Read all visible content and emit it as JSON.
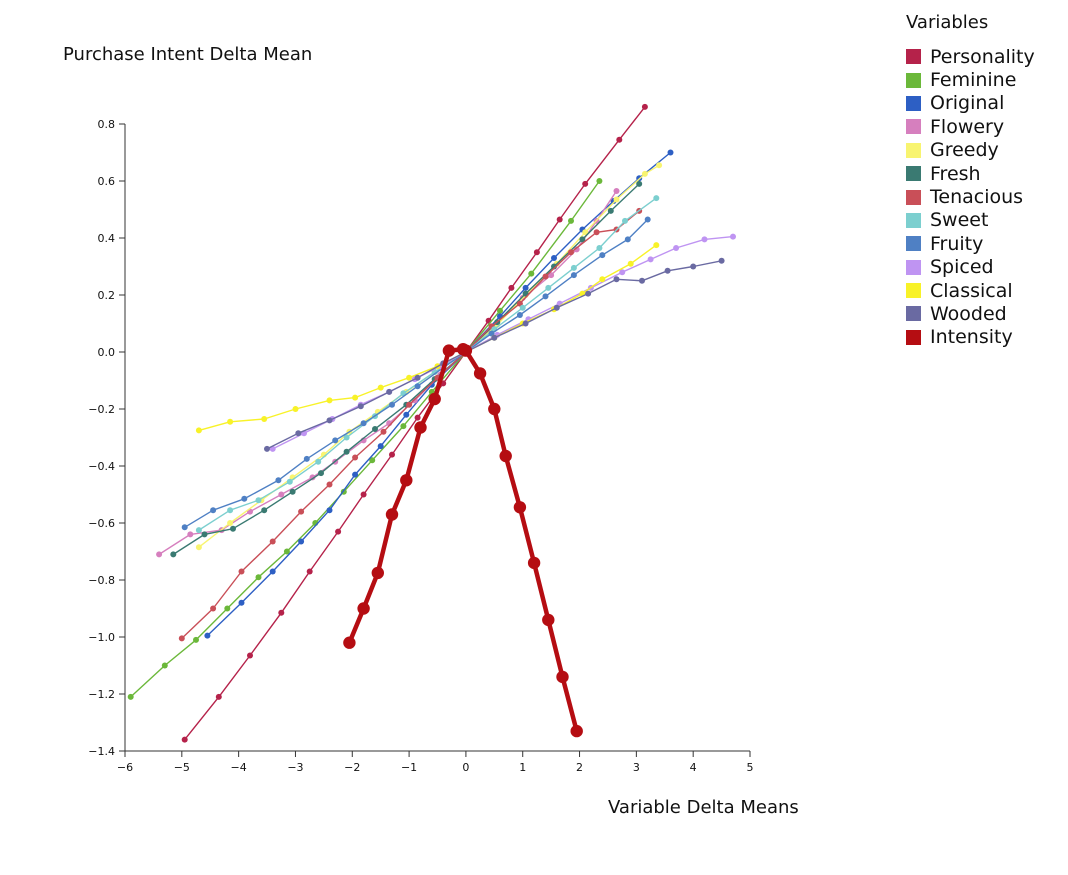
{
  "chart_data": {
    "type": "line",
    "xlabel": "Variable Delta Means",
    "ylabel": "Purchase Intent Delta Mean",
    "xlim": [
      -6,
      5
    ],
    "ylim": [
      -1.4,
      0.8
    ],
    "x_ticks": [
      "−6",
      "−5",
      "−4",
      "−3",
      "−2",
      "−1",
      "0",
      "1",
      "2",
      "3",
      "4",
      "5"
    ],
    "y_ticks": [
      "−1.4",
      "−1.2",
      "−1.0",
      "−0.8",
      "−0.6",
      "−0.4",
      "−0.2",
      "0.0",
      "0.2",
      "0.4",
      "0.6",
      "0.8"
    ],
    "legend_title": "Variables",
    "legend_position": "top-right",
    "grid": false,
    "series": [
      {
        "name": "Personality",
        "color": "#b5224a",
        "points": [
          [
            -4.95,
            -1.36
          ],
          [
            -4.35,
            -1.21
          ],
          [
            -3.8,
            -1.065
          ],
          [
            -3.25,
            -0.915
          ],
          [
            -2.75,
            -0.77
          ],
          [
            -2.25,
            -0.63
          ],
          [
            -1.8,
            -0.5
          ],
          [
            -1.3,
            -0.36
          ],
          [
            -0.85,
            -0.23
          ],
          [
            -0.4,
            -0.11
          ],
          [
            0,
            0
          ],
          [
            0.4,
            0.11
          ],
          [
            0.8,
            0.225
          ],
          [
            1.25,
            0.35
          ],
          [
            1.65,
            0.465
          ],
          [
            2.1,
            0.59
          ],
          [
            2.7,
            0.745
          ],
          [
            3.15,
            0.86
          ]
        ]
      },
      {
        "name": "Feminine",
        "color": "#6bb83a",
        "points": [
          [
            -5.9,
            -1.21
          ],
          [
            -5.3,
            -1.1
          ],
          [
            -4.75,
            -1.01
          ],
          [
            -4.2,
            -0.9
          ],
          [
            -3.65,
            -0.79
          ],
          [
            -3.15,
            -0.7
          ],
          [
            -2.65,
            -0.6
          ],
          [
            -2.15,
            -0.49
          ],
          [
            -1.65,
            -0.38
          ],
          [
            -1.1,
            -0.26
          ],
          [
            -0.6,
            -0.14
          ],
          [
            0,
            0
          ],
          [
            0.6,
            0.145
          ],
          [
            1.15,
            0.275
          ],
          [
            1.85,
            0.46
          ],
          [
            2.35,
            0.6
          ]
        ]
      },
      {
        "name": "Original",
        "color": "#2d5fc4",
        "points": [
          [
            -4.55,
            -0.995
          ],
          [
            -3.95,
            -0.88
          ],
          [
            -3.4,
            -0.77
          ],
          [
            -2.9,
            -0.665
          ],
          [
            -2.4,
            -0.555
          ],
          [
            -1.95,
            -0.43
          ],
          [
            -1.5,
            -0.33
          ],
          [
            -1.05,
            -0.22
          ],
          [
            -0.6,
            -0.115
          ],
          [
            0,
            0
          ],
          [
            0.6,
            0.125
          ],
          [
            1.05,
            0.225
          ],
          [
            1.55,
            0.33
          ],
          [
            2.05,
            0.43
          ],
          [
            2.6,
            0.53
          ],
          [
            3.05,
            0.61
          ],
          [
            3.6,
            0.7
          ]
        ]
      },
      {
        "name": "Flowery",
        "color": "#d67fbe",
        "points": [
          [
            -5.4,
            -0.71
          ],
          [
            -4.85,
            -0.64
          ],
          [
            -4.3,
            -0.625
          ],
          [
            -3.8,
            -0.56
          ],
          [
            -3.25,
            -0.5
          ],
          [
            -2.7,
            -0.44
          ],
          [
            -2.3,
            -0.385
          ],
          [
            -1.8,
            -0.31
          ],
          [
            -1.35,
            -0.25
          ],
          [
            -0.9,
            -0.17
          ],
          [
            -0.45,
            -0.08
          ],
          [
            0,
            0
          ],
          [
            0.55,
            0.1
          ],
          [
            1,
            0.19
          ],
          [
            1.5,
            0.27
          ],
          [
            1.95,
            0.36
          ],
          [
            2.3,
            0.46
          ],
          [
            2.65,
            0.565
          ]
        ]
      },
      {
        "name": "Greedy",
        "color": "#f8f470",
        "points": [
          [
            -4.7,
            -0.685
          ],
          [
            -4.15,
            -0.6
          ],
          [
            -3.6,
            -0.52
          ],
          [
            -3.05,
            -0.44
          ],
          [
            -2.5,
            -0.36
          ],
          [
            -2.05,
            -0.28
          ],
          [
            -1.55,
            -0.21
          ],
          [
            -1.05,
            -0.14
          ],
          [
            -0.55,
            -0.07
          ],
          [
            0,
            0
          ],
          [
            0.55,
            0.095
          ],
          [
            1.05,
            0.2
          ],
          [
            1.6,
            0.31
          ],
          [
            2.1,
            0.42
          ],
          [
            2.65,
            0.535
          ],
          [
            3.15,
            0.625
          ],
          [
            3.4,
            0.655
          ]
        ]
      },
      {
        "name": "Fresh",
        "color": "#3a7a72",
        "points": [
          [
            -5.15,
            -0.71
          ],
          [
            -4.6,
            -0.64
          ],
          [
            -4.1,
            -0.62
          ],
          [
            -3.55,
            -0.555
          ],
          [
            -3.05,
            -0.49
          ],
          [
            -2.55,
            -0.425
          ],
          [
            -2.1,
            -0.35
          ],
          [
            -1.6,
            -0.27
          ],
          [
            -1.05,
            -0.185
          ],
          [
            -0.55,
            -0.095
          ],
          [
            0,
            0
          ],
          [
            0.55,
            0.105
          ],
          [
            1.05,
            0.205
          ],
          [
            1.55,
            0.3
          ],
          [
            2.05,
            0.395
          ],
          [
            2.55,
            0.495
          ],
          [
            3.05,
            0.59
          ]
        ]
      },
      {
        "name": "Tenacious",
        "color": "#c94f58",
        "points": [
          [
            -5,
            -1.005
          ],
          [
            -4.45,
            -0.9
          ],
          [
            -3.95,
            -0.77
          ],
          [
            -3.4,
            -0.665
          ],
          [
            -2.9,
            -0.56
          ],
          [
            -2.4,
            -0.465
          ],
          [
            -1.95,
            -0.37
          ],
          [
            -1.45,
            -0.28
          ],
          [
            -1,
            -0.185
          ],
          [
            -0.5,
            -0.09
          ],
          [
            0,
            0
          ],
          [
            0.45,
            0.09
          ],
          [
            0.95,
            0.17
          ],
          [
            1.4,
            0.265
          ],
          [
            1.85,
            0.35
          ],
          [
            2.3,
            0.42
          ],
          [
            2.65,
            0.43
          ],
          [
            3.05,
            0.495
          ]
        ]
      },
      {
        "name": "Sweet",
        "color": "#7ccfcf",
        "points": [
          [
            -4.7,
            -0.625
          ],
          [
            -4.15,
            -0.555
          ],
          [
            -3.65,
            -0.52
          ],
          [
            -3.1,
            -0.455
          ],
          [
            -2.6,
            -0.385
          ],
          [
            -2.1,
            -0.3
          ],
          [
            -1.6,
            -0.225
          ],
          [
            -1.1,
            -0.145
          ],
          [
            -0.55,
            -0.07
          ],
          [
            0,
            0
          ],
          [
            0.5,
            0.08
          ],
          [
            1,
            0.155
          ],
          [
            1.45,
            0.225
          ],
          [
            1.9,
            0.295
          ],
          [
            2.35,
            0.365
          ],
          [
            2.8,
            0.46
          ],
          [
            3.35,
            0.54
          ]
        ]
      },
      {
        "name": "Fruity",
        "color": "#4f80c4",
        "points": [
          [
            -4.95,
            -0.615
          ],
          [
            -4.45,
            -0.555
          ],
          [
            -3.9,
            -0.515
          ],
          [
            -3.3,
            -0.45
          ],
          [
            -2.8,
            -0.375
          ],
          [
            -2.3,
            -0.31
          ],
          [
            -1.8,
            -0.25
          ],
          [
            -1.3,
            -0.185
          ],
          [
            -0.85,
            -0.12
          ],
          [
            -0.4,
            -0.055
          ],
          [
            0,
            0
          ],
          [
            0.45,
            0.065
          ],
          [
            0.95,
            0.13
          ],
          [
            1.4,
            0.195
          ],
          [
            1.9,
            0.27
          ],
          [
            2.4,
            0.34
          ],
          [
            2.85,
            0.395
          ],
          [
            3.2,
            0.465
          ]
        ]
      },
      {
        "name": "Spiced",
        "color": "#bf94f2",
        "points": [
          [
            -3.4,
            -0.34
          ],
          [
            -2.85,
            -0.285
          ],
          [
            -2.35,
            -0.235
          ],
          [
            -1.85,
            -0.185
          ],
          [
            -1.35,
            -0.14
          ],
          [
            -0.9,
            -0.095
          ],
          [
            -0.45,
            -0.05
          ],
          [
            0,
            0
          ],
          [
            0.55,
            0.06
          ],
          [
            1.1,
            0.115
          ],
          [
            1.65,
            0.17
          ],
          [
            2.2,
            0.225
          ],
          [
            2.75,
            0.28
          ],
          [
            3.25,
            0.325
          ],
          [
            3.7,
            0.365
          ],
          [
            4.2,
            0.395
          ],
          [
            4.7,
            0.405
          ]
        ]
      },
      {
        "name": "Classical",
        "color": "#f8f228",
        "points": [
          [
            -4.7,
            -0.275
          ],
          [
            -4.15,
            -0.245
          ],
          [
            -3.55,
            -0.235
          ],
          [
            -3,
            -0.2
          ],
          [
            -2.4,
            -0.17
          ],
          [
            -1.95,
            -0.16
          ],
          [
            -1.5,
            -0.125
          ],
          [
            -1,
            -0.09
          ],
          [
            -0.5,
            -0.05
          ],
          [
            0,
            0
          ],
          [
            0.5,
            0.05
          ],
          [
            1,
            0.1
          ],
          [
            1.55,
            0.15
          ],
          [
            2.05,
            0.205
          ],
          [
            2.4,
            0.255
          ],
          [
            2.9,
            0.31
          ],
          [
            3.35,
            0.375
          ]
        ]
      },
      {
        "name": "Wooded",
        "color": "#6a6aa2",
        "points": [
          [
            -3.5,
            -0.34
          ],
          [
            -2.95,
            -0.285
          ],
          [
            -2.4,
            -0.24
          ],
          [
            -1.85,
            -0.19
          ],
          [
            -1.35,
            -0.14
          ],
          [
            -0.85,
            -0.09
          ],
          [
            -0.4,
            -0.04
          ],
          [
            0,
            0
          ],
          [
            0.5,
            0.05
          ],
          [
            1.05,
            0.1
          ],
          [
            1.6,
            0.155
          ],
          [
            2.15,
            0.205
          ],
          [
            2.65,
            0.255
          ],
          [
            3.1,
            0.25
          ],
          [
            3.55,
            0.285
          ],
          [
            4,
            0.3
          ],
          [
            4.5,
            0.32
          ]
        ]
      },
      {
        "name": "Intensity",
        "color": "#b50d12",
        "highlighted": true,
        "points": [
          [
            -2.05,
            -1.02
          ],
          [
            -1.8,
            -0.9
          ],
          [
            -1.55,
            -0.775
          ],
          [
            -1.3,
            -0.57
          ],
          [
            -1.05,
            -0.45
          ],
          [
            -0.8,
            -0.265
          ],
          [
            -0.55,
            -0.165
          ],
          [
            -0.3,
            0.005
          ],
          [
            -0.05,
            0.01
          ],
          [
            0,
            0.005
          ],
          [
            0.25,
            -0.075
          ],
          [
            0.5,
            -0.2
          ],
          [
            0.7,
            -0.365
          ],
          [
            0.95,
            -0.545
          ],
          [
            1.2,
            -0.74
          ],
          [
            1.45,
            -0.94
          ],
          [
            1.7,
            -1.14
          ],
          [
            1.95,
            -1.33
          ]
        ]
      }
    ]
  }
}
